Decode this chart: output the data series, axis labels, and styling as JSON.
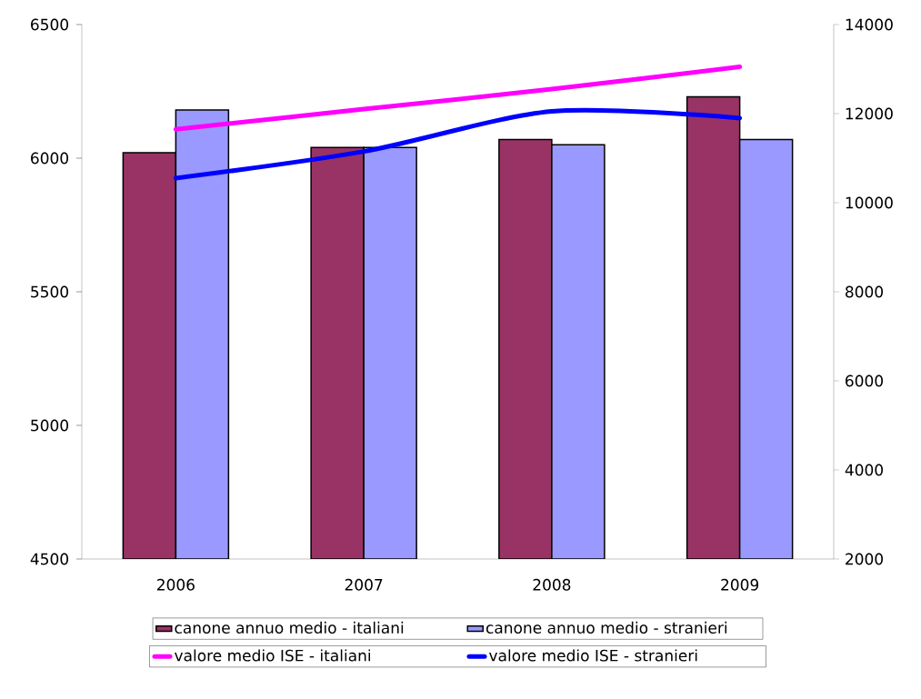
{
  "chart_data": {
    "type": "bar",
    "categories": [
      "2006",
      "2007",
      "2008",
      "2009"
    ],
    "series": [
      {
        "name": "canone annuo medio - italiani",
        "color": "#993366",
        "values": [
          6020,
          6040,
          6070,
          6230
        ]
      },
      {
        "name": "canone annuo medio - stranieri",
        "color": "#9999ff",
        "values": [
          6180,
          6040,
          6050,
          6070
        ]
      },
      {
        "name": "valore medio ISE - italiani",
        "color": "#ff00ff",
        "type": "line",
        "axis": "y2",
        "values": [
          11650,
          12100,
          12550,
          13050
        ]
      },
      {
        "name": "valore medio ISE - stranieri",
        "color": "#0000ff",
        "type": "line",
        "axis": "y2",
        "values": [
          10550,
          11150,
          12050,
          11900
        ]
      }
    ],
    "ylim": [
      4500,
      6500
    ],
    "yticks": [
      4500,
      5000,
      5500,
      6000,
      6500
    ],
    "y2lim": [
      2000,
      14000
    ],
    "y2ticks": [
      2000,
      4000,
      6000,
      8000,
      10000,
      12000,
      14000
    ],
    "legend": "bottom"
  }
}
